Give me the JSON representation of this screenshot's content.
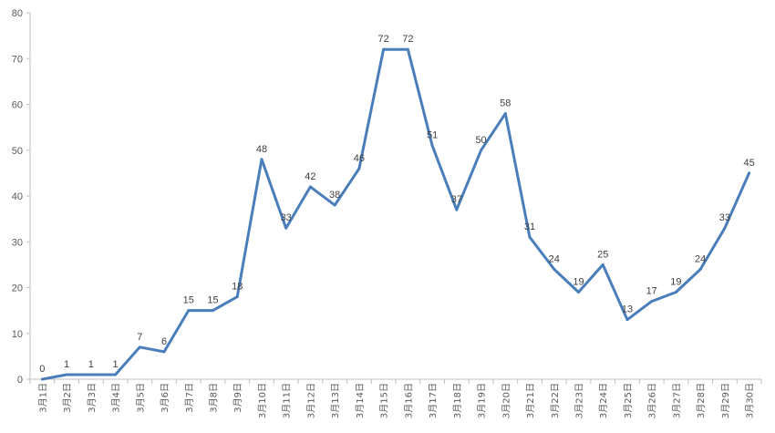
{
  "chart_data": {
    "type": "line",
    "title": "",
    "xlabel": "",
    "ylabel": "",
    "ylim": [
      0,
      80
    ],
    "yticks": [
      0,
      10,
      20,
      30,
      40,
      50,
      60,
      70,
      80
    ],
    "grid": false,
    "legend": "none",
    "line_color": "#4a7ebb",
    "categories": [
      "3月1日",
      "3月2日",
      "3月3日",
      "3月4日",
      "3月5日",
      "3月6日",
      "3月7日",
      "3月8日",
      "3月9日",
      "3月10日",
      "3月11日",
      "3月12日",
      "3月13日",
      "3月14日",
      "3月15日",
      "3月16日",
      "3月17日",
      "3月18日",
      "3月19日",
      "3月20日",
      "3月21日",
      "3月22日",
      "3月23日",
      "3月24日",
      "3月25日",
      "3月26日",
      "3月27日",
      "3月28日",
      "3月29日",
      "3月30日"
    ],
    "values": [
      0,
      1,
      1,
      1,
      7,
      6,
      15,
      15,
      18,
      48,
      33,
      42,
      38,
      46,
      72,
      72,
      51,
      37,
      50,
      58,
      31,
      24,
      19,
      25,
      13,
      17,
      19,
      24,
      33,
      45
    ]
  }
}
